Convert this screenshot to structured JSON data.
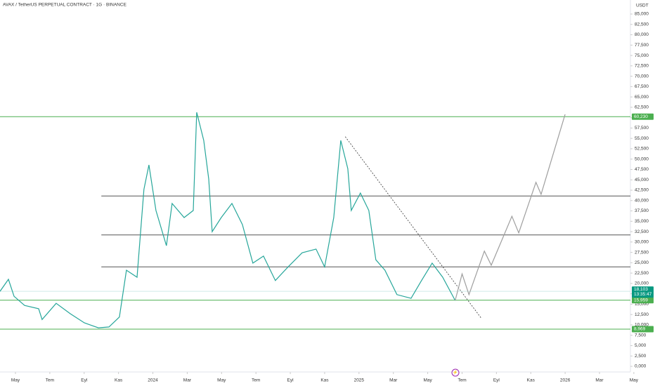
{
  "chart_data": {
    "type": "line",
    "title": "AVAX / TetherUS PERPETUAL CONTRACT · 1G · BINANCE",
    "currency_label": "USDT",
    "color": "#26a69a",
    "x": [
      -0.9,
      -0.41,
      -0.08,
      0.53,
      1.35,
      1.55,
      2.37,
      3.19,
      4.01,
      4.83,
      5.44,
      6.05,
      6.46,
      7.08,
      7.48,
      7.77,
      8.18,
      8.79,
      9.12,
      9.82,
      10.35,
      10.55,
      10.96,
      11.25,
      11.45,
      11.98,
      12.6,
      13.21,
      13.82,
      14.44,
      15.13,
      15.87,
      16.69,
      17.5,
      18.0,
      18.53,
      18.94,
      19.35,
      19.55,
      20.08,
      20.57,
      20.98,
      21.51,
      22.21,
      23.03,
      23.64,
      24.26,
      24.87,
      25.6
    ],
    "values": [
      18100,
      21000,
      16900,
      14700,
      13900,
      11300,
      15200,
      12700,
      10500,
      9300,
      9500,
      11900,
      23200,
      21500,
      42700,
      48600,
      37600,
      29100,
      39300,
      35900,
      37600,
      61300,
      54500,
      45200,
      32500,
      35900,
      39300,
      34200,
      24900,
      26600,
      20700,
      24000,
      27400,
      28300,
      24000,
      35900,
      54500,
      47700,
      37600,
      41800,
      37600,
      25700,
      23200,
      17300,
      16400,
      20700,
      24900,
      21500,
      15900
    ],
    "projection": {
      "color": "#9e9e9e",
      "x": [
        25.6,
        26.0,
        26.4,
        27.3,
        27.7,
        28.9,
        29.3,
        30.3,
        30.6,
        32.0
      ],
      "values": [
        15900,
        22300,
        17300,
        27800,
        24400,
        36200,
        32200,
        44400,
        41500,
        60800
      ]
    },
    "trendline": {
      "color": "#333333",
      "x": [
        19.2,
        27.1
      ],
      "values": [
        55400,
        11700
      ]
    },
    "levels": [
      {
        "value": 60230,
        "label": "60,230",
        "color": "#4caf50"
      },
      {
        "value": 41100,
        "color": "#555555",
        "x_start": 5.0
      },
      {
        "value": 31700,
        "color": "#555555",
        "x_start": 5.0
      },
      {
        "value": 24000,
        "color": "#555555",
        "x_start": 5.0
      },
      {
        "value": 15959,
        "label": "15,959",
        "color": "#4caf50"
      },
      {
        "value": 8969,
        "label": "8,969",
        "color": "#4caf50"
      }
    ],
    "current_price": {
      "value": 18103,
      "label": "18,103",
      "countdown": "13:35:47",
      "color": "#089981"
    },
    "xlim": [
      -0.9,
      35.8
    ],
    "xticks": [
      {
        "value": 0,
        "label": "May"
      },
      {
        "value": 2,
        "label": "Tem"
      },
      {
        "value": 4,
        "label": "Eyl"
      },
      {
        "value": 6,
        "label": "Kas"
      },
      {
        "value": 8,
        "label": "2024"
      },
      {
        "value": 10,
        "label": "Mar"
      },
      {
        "value": 12,
        "label": "May"
      },
      {
        "value": 14,
        "label": "Tem"
      },
      {
        "value": 16,
        "label": "Eyl"
      },
      {
        "value": 18,
        "label": "Kas"
      },
      {
        "value": 20,
        "label": "2025"
      },
      {
        "value": 22,
        "label": "Mar"
      },
      {
        "value": 24,
        "label": "May"
      },
      {
        "value": 26,
        "label": "Tem"
      },
      {
        "value": 28,
        "label": "Eyl"
      },
      {
        "value": 30,
        "label": "Kas"
      },
      {
        "value": 32,
        "label": "2026"
      },
      {
        "value": 34,
        "label": "Mar"
      },
      {
        "value": 36,
        "label": "May"
      }
    ],
    "ylim": [
      0,
      85000
    ],
    "yticks": [
      {
        "value": 0,
        "label": "0,000"
      },
      {
        "value": 2500,
        "label": "2,500"
      },
      {
        "value": 5000,
        "label": "5,000"
      },
      {
        "value": 7500,
        "label": "7,500"
      },
      {
        "value": 10000,
        "label": "10,000"
      },
      {
        "value": 12500,
        "label": "12,500"
      },
      {
        "value": 15000,
        "label": "15,000"
      },
      {
        "value": 17500,
        "label": "17,500"
      },
      {
        "value": 20000,
        "label": "20,000"
      },
      {
        "value": 22500,
        "label": "22,500"
      },
      {
        "value": 25000,
        "label": "25,000"
      },
      {
        "value": 27500,
        "label": "27,500"
      },
      {
        "value": 30000,
        "label": "30,000"
      },
      {
        "value": 32500,
        "label": "32,500"
      },
      {
        "value": 35000,
        "label": "35,000"
      },
      {
        "value": 37500,
        "label": "37,500"
      },
      {
        "value": 40000,
        "label": "40,000"
      },
      {
        "value": 42500,
        "label": "42,500"
      },
      {
        "value": 45000,
        "label": "45,000"
      },
      {
        "value": 47500,
        "label": "47,500"
      },
      {
        "value": 50000,
        "label": "50,000"
      },
      {
        "value": 52500,
        "label": "52,500"
      },
      {
        "value": 55000,
        "label": "55,000"
      },
      {
        "value": 57500,
        "label": "57,500"
      },
      {
        "value": 60000,
        "label": "60,000"
      },
      {
        "value": 62500,
        "label": "62,500"
      },
      {
        "value": 65000,
        "label": "65,000"
      },
      {
        "value": 67500,
        "label": "67,500"
      },
      {
        "value": 70000,
        "label": "70,000"
      },
      {
        "value": 72500,
        "label": "72,500"
      },
      {
        "value": 75000,
        "label": "75,000"
      },
      {
        "value": 77500,
        "label": "77,500"
      },
      {
        "value": 80000,
        "label": "80,000"
      },
      {
        "value": 82500,
        "label": "82,500"
      },
      {
        "value": 85000,
        "label": "85,000"
      }
    ]
  }
}
